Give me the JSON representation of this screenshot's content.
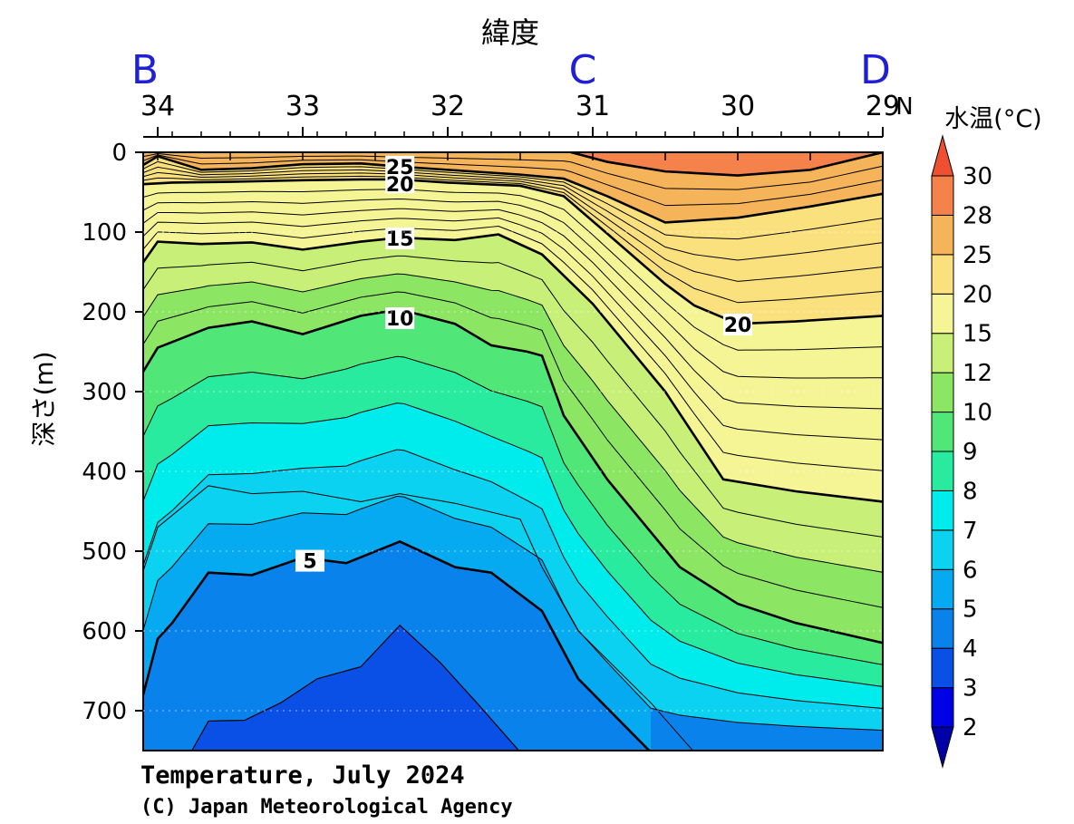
{
  "chart_data": {
    "type": "heatmap",
    "title": "Temperature, July 2024",
    "credit": "(C) Japan Meteorological Agency",
    "xlabel": "緯度",
    "ylabel": "深さ(m)",
    "colorbar_label": "水温(°C)",
    "x_unit": "N",
    "xlim": [
      34.1,
      29.0
    ],
    "ylim": [
      750,
      0
    ],
    "x_ticks": [
      34,
      33,
      32,
      31,
      30,
      29
    ],
    "x_tick_labels": [
      "34",
      "33",
      "32",
      "31",
      "30",
      "29"
    ],
    "y_ticks": [
      0,
      100,
      200,
      300,
      400,
      500,
      600,
      700
    ],
    "y_tick_labels": [
      "0",
      "100",
      "200",
      "300",
      "400",
      "500",
      "600",
      "700"
    ],
    "section_points": [
      {
        "label": "B",
        "lat": 34.1
      },
      {
        "label": "C",
        "lat": 31.0
      },
      {
        "label": "D",
        "lat": 29.0
      }
    ],
    "colorbar": {
      "levels": [
        2,
        3,
        4,
        5,
        6,
        7,
        8,
        9,
        10,
        12,
        15,
        20,
        25,
        28,
        30
      ],
      "colors": [
        "#0000a8",
        "#0000e6",
        "#0a50e6",
        "#0a82eb",
        "#05aaf0",
        "#0ad2f0",
        "#00ebeb",
        "#28eba0",
        "#50e678",
        "#8ce664",
        "#c8f078",
        "#f5f596",
        "#fae17d",
        "#f5b45a",
        "#f5824b",
        "#f05032"
      ]
    },
    "isotherms": [
      {
        "temp": 5,
        "bold": true,
        "label": "5",
        "label_at": [
          32.95,
          512
        ],
        "points": [
          [
            34.1,
            680
          ],
          [
            34.0,
            610
          ],
          [
            33.9,
            590
          ],
          [
            33.65,
            527
          ],
          [
            33.35,
            530
          ],
          [
            33.0,
            508
          ],
          [
            32.7,
            515
          ],
          [
            32.33,
            488
          ],
          [
            31.95,
            520
          ],
          [
            31.7,
            527
          ],
          [
            31.35,
            575
          ],
          [
            31.1,
            660
          ],
          [
            30.6,
            752
          ]
        ]
      },
      {
        "temp": 10,
        "bold": true,
        "label": "10",
        "label_at": [
          32.33,
          208
        ],
        "points": [
          [
            34.1,
            275
          ],
          [
            34.0,
            245
          ],
          [
            33.65,
            220
          ],
          [
            33.35,
            212
          ],
          [
            33.0,
            228
          ],
          [
            32.6,
            205
          ],
          [
            32.33,
            197
          ],
          [
            31.95,
            215
          ],
          [
            31.7,
            242
          ],
          [
            31.45,
            250
          ],
          [
            31.35,
            255
          ],
          [
            31.2,
            330
          ],
          [
            30.9,
            410
          ],
          [
            30.4,
            520
          ],
          [
            30.0,
            566
          ],
          [
            29.6,
            590
          ],
          [
            29.0,
            615
          ]
        ]
      },
      {
        "temp": 15,
        "bold": true,
        "label": "15",
        "label_at": [
          32.33,
          108
        ],
        "points": [
          [
            34.1,
            138
          ],
          [
            34.0,
            112
          ],
          [
            33.7,
            115
          ],
          [
            33.35,
            113
          ],
          [
            33.0,
            122
          ],
          [
            32.6,
            112
          ],
          [
            32.33,
            107
          ],
          [
            31.95,
            110
          ],
          [
            31.65,
            103
          ],
          [
            31.35,
            128
          ],
          [
            31.0,
            190
          ],
          [
            30.5,
            300
          ],
          [
            30.1,
            410
          ],
          [
            29.6,
            425
          ],
          [
            29.0,
            438
          ]
        ]
      },
      {
        "temp": 20,
        "bold": true,
        "label": "20",
        "label_at": [
          30.0,
          216
        ],
        "points": [
          [
            34.1,
            40
          ],
          [
            33.9,
            38
          ],
          [
            33.5,
            37
          ],
          [
            33.0,
            35
          ],
          [
            32.6,
            34
          ],
          [
            32.33,
            34
          ],
          [
            32.0,
            38
          ],
          [
            31.5,
            42
          ],
          [
            31.2,
            55
          ],
          [
            30.9,
            102
          ],
          [
            30.5,
            165
          ],
          [
            30.3,
            192
          ],
          [
            30.0,
            215
          ],
          [
            29.6,
            212
          ],
          [
            29.0,
            205
          ]
        ]
      },
      {
        "temp": 25,
        "bold": true,
        "label": "25",
        "label_at": [
          32.33,
          18
        ],
        "points": [
          [
            34.1,
            16
          ],
          [
            34.0,
            5
          ],
          [
            33.7,
            22
          ],
          [
            33.35,
            20
          ],
          [
            33.0,
            15
          ],
          [
            32.6,
            14
          ],
          [
            32.33,
            18
          ],
          [
            32.0,
            22
          ],
          [
            31.5,
            28
          ],
          [
            31.2,
            33
          ],
          [
            30.9,
            55
          ],
          [
            30.5,
            88
          ],
          [
            30.0,
            82
          ],
          [
            29.5,
            68
          ],
          [
            29.0,
            52
          ]
        ]
      },
      {
        "temp": 28,
        "bold": true,
        "label": "",
        "points": [
          [
            31.15,
            0
          ],
          [
            30.9,
            12
          ],
          [
            30.5,
            24
          ],
          [
            30.0,
            29
          ],
          [
            29.5,
            22
          ],
          [
            29.0,
            0
          ]
        ]
      },
      {
        "temp": 3,
        "bold": false,
        "label": "",
        "points": [
          [
            33.77,
            752
          ],
          [
            33.65,
            713
          ],
          [
            33.4,
            712
          ],
          [
            33.15,
            690
          ],
          [
            32.9,
            660
          ],
          [
            32.6,
            645
          ],
          [
            32.33,
            593
          ],
          [
            32.05,
            640
          ],
          [
            31.8,
            690
          ],
          [
            31.5,
            752
          ]
        ]
      }
    ]
  }
}
